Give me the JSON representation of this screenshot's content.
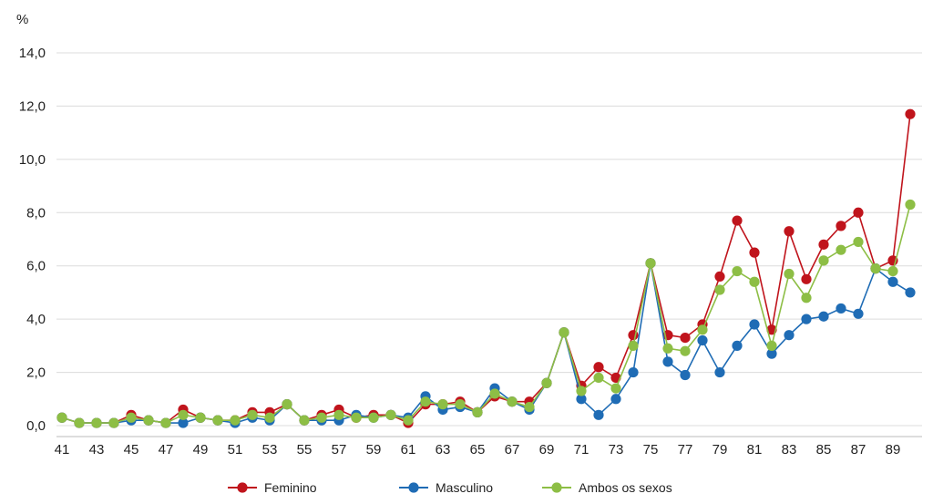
{
  "chart_data": {
    "type": "line",
    "title": "",
    "xlabel": "",
    "ylabel": "%",
    "ylim": [
      0,
      14
    ],
    "yticks": [
      "0,0",
      "2,0",
      "4,0",
      "6,0",
      "8,0",
      "10,0",
      "12,0",
      "14,0"
    ],
    "x": [
      41,
      42,
      43,
      44,
      45,
      46,
      47,
      48,
      49,
      50,
      51,
      52,
      53,
      54,
      55,
      56,
      57,
      58,
      59,
      60,
      61,
      62,
      63,
      64,
      65,
      66,
      67,
      68,
      69,
      70,
      71,
      72,
      73,
      74,
      75,
      76,
      77,
      78,
      79,
      80,
      81,
      82,
      83,
      84,
      85,
      86,
      87,
      88,
      89,
      90
    ],
    "xtick_labels": [
      "41",
      "43",
      "45",
      "47",
      "49",
      "51",
      "53",
      "55",
      "57",
      "59",
      "61",
      "63",
      "65",
      "67",
      "69",
      "71",
      "73",
      "75",
      "77",
      "79",
      "81",
      "83",
      "85",
      "87",
      "89"
    ],
    "grid": true,
    "legend_position": "bottom",
    "series": [
      {
        "name": "Feminino",
        "color": "#c0141c",
        "values": [
          0.3,
          0.1,
          0.1,
          0.1,
          0.4,
          0.2,
          0.1,
          0.6,
          0.3,
          0.2,
          0.2,
          0.5,
          0.5,
          0.8,
          0.2,
          0.4,
          0.6,
          0.3,
          0.4,
          0.4,
          0.1,
          0.8,
          0.8,
          0.9,
          0.5,
          1.1,
          0.9,
          0.9,
          1.6,
          3.5,
          1.5,
          2.2,
          1.8,
          3.4,
          6.1,
          3.4,
          3.3,
          3.8,
          5.6,
          7.7,
          6.5,
          3.6,
          7.3,
          5.5,
          6.8,
          7.5,
          8.0,
          5.9,
          6.2,
          11.7
        ]
      },
      {
        "name": "Masculino",
        "color": "#1f6cb5",
        "values": [
          0.3,
          0.1,
          0.1,
          0.1,
          0.2,
          0.2,
          0.1,
          0.1,
          0.3,
          0.2,
          0.1,
          0.3,
          0.2,
          0.8,
          0.2,
          0.2,
          0.2,
          0.4,
          0.3,
          0.4,
          0.3,
          1.1,
          0.6,
          0.7,
          0.5,
          1.4,
          0.9,
          0.6,
          1.6,
          3.5,
          1.0,
          0.4,
          1.0,
          2.0,
          6.1,
          2.4,
          1.9,
          3.2,
          2.0,
          3.0,
          3.8,
          2.7,
          3.4,
          4.0,
          4.1,
          4.4,
          4.2,
          5.9,
          5.4,
          5.0
        ]
      },
      {
        "name": "Ambos os sexos",
        "color": "#8dbe45",
        "values": [
          0.3,
          0.1,
          0.1,
          0.1,
          0.3,
          0.2,
          0.1,
          0.4,
          0.3,
          0.2,
          0.2,
          0.4,
          0.3,
          0.8,
          0.2,
          0.3,
          0.4,
          0.3,
          0.3,
          0.4,
          0.2,
          0.9,
          0.8,
          0.8,
          0.5,
          1.2,
          0.9,
          0.7,
          1.6,
          3.5,
          1.3,
          1.8,
          1.4,
          3.0,
          6.1,
          2.9,
          2.8,
          3.6,
          5.1,
          5.8,
          5.4,
          3.0,
          5.7,
          4.8,
          6.2,
          6.6,
          6.9,
          5.9,
          5.8,
          8.3
        ]
      }
    ]
  }
}
